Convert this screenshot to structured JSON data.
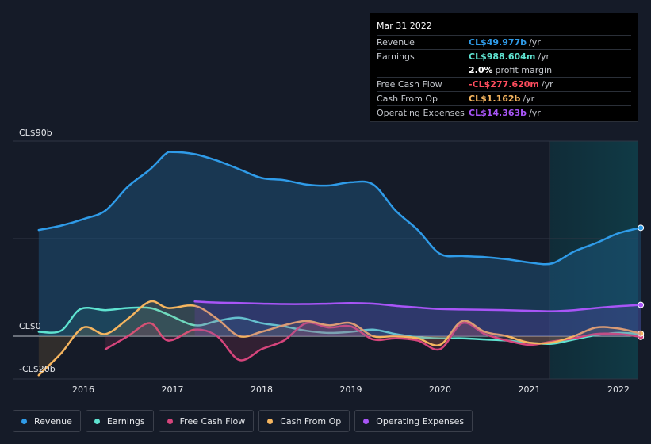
{
  "tooltip": {
    "date": "Mar 31 2022",
    "rows": [
      {
        "label": "Revenue",
        "value": "CL$49.977b",
        "unit": "/yr",
        "color": "#2f9be8"
      },
      {
        "label": "Earnings",
        "value": "CL$988.604m",
        "unit": "/yr",
        "color": "#5fe3d1"
      },
      {
        "label": "",
        "value": "2.0%",
        "unit": "profit margin",
        "color": "#ffffff"
      },
      {
        "label": "Free Cash Flow",
        "value": "-CL$277.620m",
        "unit": "/yr",
        "color": "#ff4d5e"
      },
      {
        "label": "Cash From Op",
        "value": "CL$1.162b",
        "unit": "/yr",
        "color": "#f5b55f"
      },
      {
        "label": "Operating Expenses",
        "value": "CL$14.363b",
        "unit": "/yr",
        "color": "#a855f7"
      }
    ]
  },
  "legend": [
    {
      "label": "Revenue",
      "color": "#2f9be8"
    },
    {
      "label": "Earnings",
      "color": "#5fe3d1"
    },
    {
      "label": "Free Cash Flow",
      "color": "#d6457c"
    },
    {
      "label": "Cash From Op",
      "color": "#f5b55f"
    },
    {
      "label": "Operating Expenses",
      "color": "#a855f7"
    }
  ],
  "chart_data": {
    "type": "line",
    "title": "",
    "xlabel": "",
    "ylabel": "",
    "ylim": [
      -20,
      90
    ],
    "xlim": [
      2015.4,
      2022.25
    ],
    "y_tick_labels": [
      {
        "value": 90,
        "label": "CL$90b"
      },
      {
        "value": 0,
        "label": "CL$0"
      },
      {
        "value": -20,
        "label": "-CL$20b"
      }
    ],
    "x_ticks": [
      2016,
      2017,
      2018,
      2019,
      2020,
      2021,
      2022
    ],
    "x_tick_labels": [
      "2016",
      "2017",
      "2018",
      "2019",
      "2020",
      "2021",
      "2022"
    ],
    "series": [
      {
        "name": "Revenue",
        "color": "#2f9be8",
        "x": [
          2015.5,
          2015.75,
          2016.0,
          2016.25,
          2016.5,
          2016.75,
          2016.92,
          2017.0,
          2017.25,
          2017.5,
          2017.75,
          2018.0,
          2018.25,
          2018.5,
          2018.75,
          2019.0,
          2019.25,
          2019.5,
          2019.75,
          2020.0,
          2020.25,
          2020.5,
          2020.75,
          2021.0,
          2021.25,
          2021.5,
          2021.75,
          2022.0,
          2022.25
        ],
        "values": [
          49,
          51,
          54,
          58,
          69,
          77,
          84,
          85,
          84,
          81,
          77,
          73,
          72,
          70,
          69.5,
          71,
          70,
          58,
          49,
          38,
          37,
          36.5,
          35.5,
          34,
          33.5,
          39,
          43,
          47.5,
          50
        ]
      },
      {
        "name": "Earnings",
        "color": "#5fe3d1",
        "x": [
          2015.5,
          2015.75,
          2015.97,
          2016.25,
          2016.5,
          2016.75,
          2016.95,
          2017.25,
          2017.5,
          2017.75,
          2018.0,
          2018.25,
          2018.5,
          2018.75,
          2019.0,
          2019.25,
          2019.5,
          2019.75,
          2020.0,
          2020.25,
          2020.5,
          2020.75,
          2021.0,
          2021.25,
          2021.5,
          2021.75,
          2022.0,
          2022.25
        ],
        "values": [
          2,
          2.5,
          12.5,
          12,
          13,
          13,
          10,
          5,
          7,
          8.5,
          6,
          4.5,
          2.5,
          1.5,
          2,
          3,
          1,
          -0.5,
          -1,
          -1,
          -1.5,
          -2,
          -3,
          -3.5,
          -1.5,
          0.5,
          1.5,
          1
        ]
      },
      {
        "name": "Free Cash Flow",
        "color": "#d6457c",
        "x": [
          2016.25,
          2016.5,
          2016.75,
          2016.95,
          2017.25,
          2017.5,
          2017.75,
          2018.0,
          2018.25,
          2018.5,
          2018.75,
          2019.0,
          2019.25,
          2019.5,
          2019.75,
          2020.0,
          2020.25,
          2020.5,
          2020.75,
          2021.0,
          2021.25,
          2021.5,
          2021.75,
          2022.0,
          2022.25
        ],
        "values": [
          -6,
          0,
          6,
          -2,
          3,
          0,
          -11,
          -6,
          -2,
          6,
          4,
          4.5,
          -1.5,
          -1,
          -2,
          -6,
          6,
          1,
          -2,
          -4,
          -2.5,
          -1,
          1,
          1,
          -0.3
        ]
      },
      {
        "name": "Cash From Op",
        "color": "#f5b55f",
        "x": [
          2015.5,
          2015.75,
          2016.0,
          2016.25,
          2016.5,
          2016.75,
          2016.95,
          2017.25,
          2017.5,
          2017.75,
          2018.0,
          2018.25,
          2018.5,
          2018.75,
          2019.0,
          2019.25,
          2019.5,
          2019.75,
          2020.0,
          2020.25,
          2020.5,
          2020.75,
          2021.0,
          2021.25,
          2021.5,
          2021.75,
          2022.0,
          2022.25
        ],
        "values": [
          -18,
          -8,
          4,
          1,
          8,
          16,
          13,
          14,
          8,
          0,
          2,
          5,
          7,
          5,
          6,
          0,
          0,
          -1,
          -4,
          7,
          2,
          0,
          -3,
          -3,
          0,
          4,
          3.5,
          1.2
        ]
      },
      {
        "name": "Operating Expenses",
        "color": "#a855f7",
        "x": [
          2017.25,
          2017.5,
          2017.75,
          2018.0,
          2018.25,
          2018.5,
          2018.75,
          2019.0,
          2019.25,
          2019.5,
          2019.75,
          2020.0,
          2020.25,
          2020.5,
          2020.75,
          2021.0,
          2021.25,
          2021.5,
          2021.75,
          2022.0,
          2022.25
        ],
        "values": [
          16,
          15.5,
          15.3,
          15,
          14.8,
          14.8,
          15,
          15.3,
          15,
          14,
          13.2,
          12.5,
          12.3,
          12.2,
          12,
          11.7,
          11.5,
          12,
          13,
          13.8,
          14.4
        ]
      }
    ]
  }
}
